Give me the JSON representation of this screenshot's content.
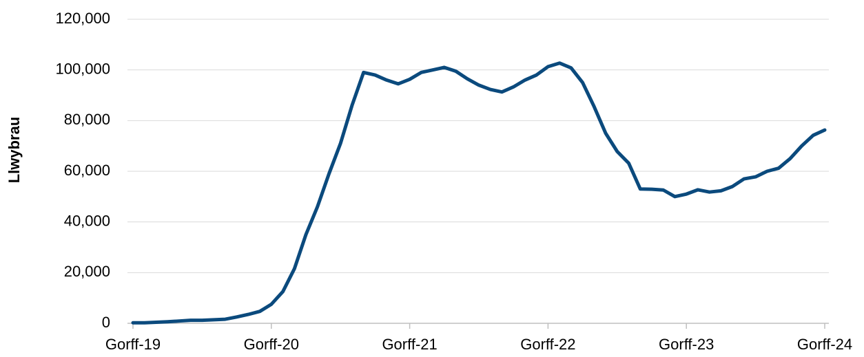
{
  "chart_data": {
    "type": "line",
    "y_label": "Llwybrau",
    "categories": [
      "Gorff-19",
      null,
      null,
      null,
      null,
      null,
      null,
      null,
      null,
      null,
      null,
      null,
      "Gorff-20",
      null,
      null,
      null,
      null,
      null,
      null,
      null,
      null,
      null,
      null,
      null,
      "Gorff-21",
      null,
      null,
      null,
      null,
      null,
      null,
      null,
      null,
      null,
      null,
      null,
      "Gorff-22",
      null,
      null,
      null,
      null,
      null,
      null,
      null,
      null,
      null,
      null,
      null,
      "Gorff-23",
      null,
      null,
      null,
      null,
      null,
      null,
      null,
      null,
      null,
      null,
      null,
      "Gorff-24"
    ],
    "series": [
      {
        "color": "#0b4a7d",
        "values": [
          200,
          200,
          400,
          600,
          900,
          1200,
          1200,
          1400,
          1600,
          2500,
          3500,
          4700,
          7500,
          12500,
          21500,
          35000,
          46000,
          59000,
          71000,
          86000,
          99000,
          98000,
          96000,
          94500,
          96300,
          99000,
          100000,
          101000,
          99500,
          96500,
          94000,
          92300,
          91300,
          93300,
          96000,
          98000,
          101300,
          102700,
          100800,
          95000,
          85500,
          75000,
          67800,
          63200,
          53000,
          52900,
          52600,
          50000,
          51000,
          52700,
          51800,
          52300,
          54000,
          57000,
          57800,
          60000,
          61200,
          65000,
          70000,
          74200,
          76300
        ]
      }
    ],
    "ylim": [
      0,
      120000
    ],
    "yticks": [
      0,
      {
        "value": 20000,
        "label": "20,000"
      },
      {
        "value": 40000,
        "label": "40,000"
      },
      {
        "value": 60000,
        "label": "60,000"
      },
      {
        "value": 80000,
        "label": "80,000"
      },
      {
        "value": 100000,
        "label": "100,000"
      },
      {
        "value": 120000,
        "label": "120,000"
      }
    ],
    "grid": true
  }
}
